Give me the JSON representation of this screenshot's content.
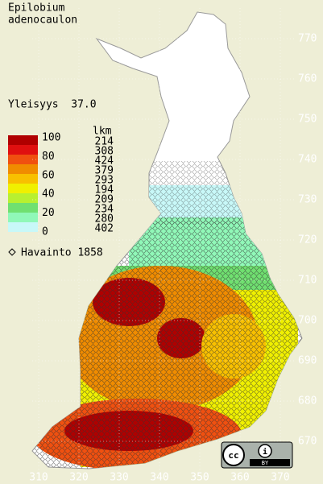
{
  "title": [
    "Epilobium",
    "adenocaulon"
  ],
  "frequency": "Yleisyys  37.0",
  "legend": {
    "scale_labels": [
      "100",
      "80",
      "60",
      "40",
      "20",
      "0"
    ],
    "count_header": "lkm",
    "counts": [
      "214",
      "308",
      "424",
      "379",
      "293",
      "194",
      "209",
      "234",
      "280",
      "402"
    ],
    "colors": [
      "#b00000",
      "#e01010",
      "#f05010",
      "#f08c00",
      "#f8c000",
      "#f0f000",
      "#b8f030",
      "#70e070",
      "#90f8b8",
      "#c8f8f8"
    ]
  },
  "observations": "Havainto 1858",
  "grid": {
    "northing": [
      770,
      760,
      750,
      740,
      730,
      720,
      710,
      700,
      690,
      680,
      670
    ],
    "easting": [
      310,
      320,
      330,
      340,
      350,
      360,
      370
    ]
  },
  "license": {
    "badge": "cc",
    "by": "BY"
  }
}
